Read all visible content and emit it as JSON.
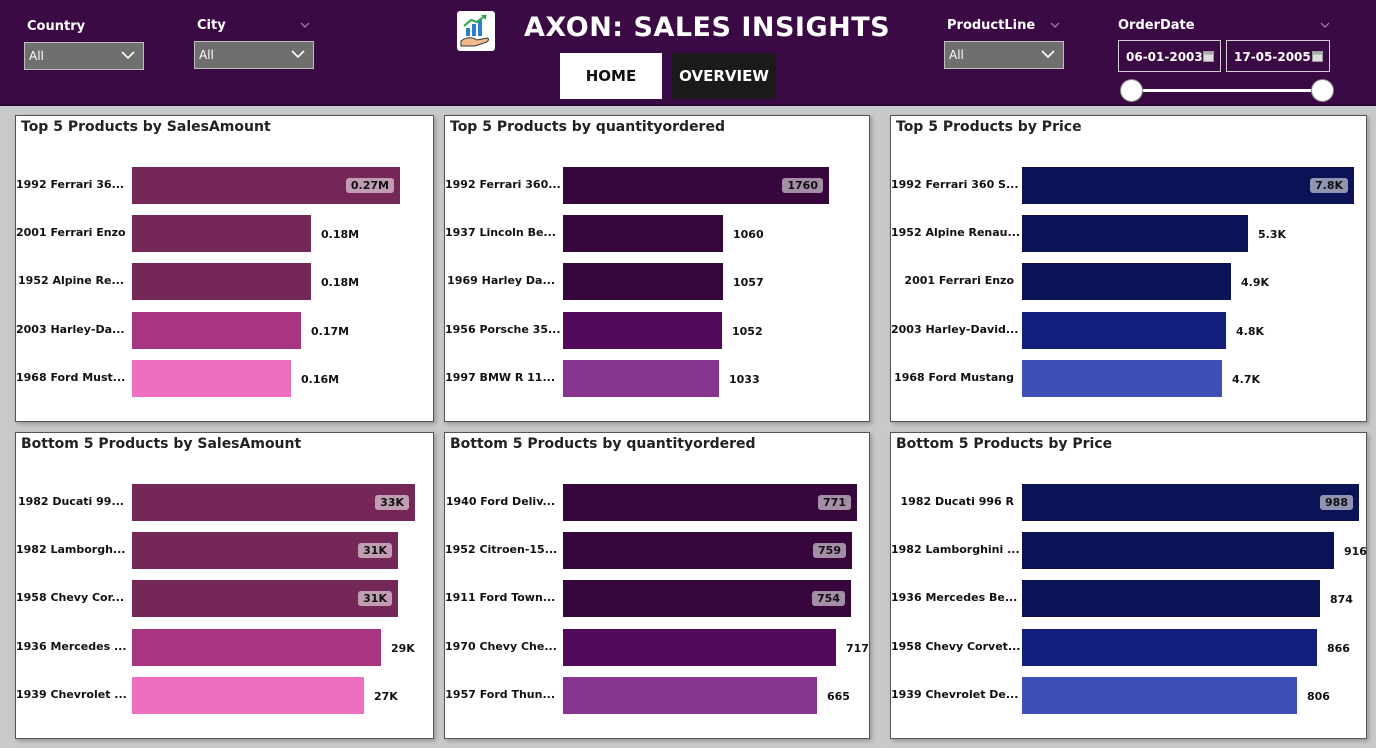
{
  "filters": {
    "country": {
      "label": "Country",
      "value": "All"
    },
    "city": {
      "label": "City",
      "value": "All"
    },
    "productline": {
      "label": "ProductLine",
      "value": "All"
    },
    "orderdate": {
      "label": "OrderDate",
      "start": "06-01-2003",
      "end": "17-05-2005"
    }
  },
  "app": {
    "title": "AXON: SALES INSIGHTS"
  },
  "nav": {
    "home": "HOME",
    "overview": "OVERVIEW"
  },
  "colors": {
    "header": "#3b0a44",
    "sales": [
      "#752757",
      "#752757",
      "#752757",
      "#a73582",
      "#ee6ec0"
    ],
    "quantity": [
      "#36063d",
      "#36063d",
      "#36063d",
      "#520a5a",
      "#86348e"
    ],
    "price": [
      "#0b1256",
      "#0b1256",
      "#0b1256",
      "#131f7e",
      "#404fb5"
    ]
  },
  "chart_data": [
    {
      "type": "bar",
      "title": "Top 5 Products by SalesAmount",
      "categories": [
        "1992 Ferrari 36...",
        "2001 Ferrari Enzo",
        "1952 Alpine Re...",
        "2003 Harley-Da...",
        "1968 Ford Must..."
      ],
      "values": [
        0.27,
        0.18,
        0.18,
        0.17,
        0.16
      ],
      "labels": [
        "0.27M",
        "0.18M",
        "0.18M",
        "0.17M",
        "0.16M"
      ],
      "max": 0.27
    },
    {
      "type": "bar",
      "title": "Top 5 Products by quantityordered",
      "categories": [
        "1992 Ferrari 360...",
        "1937 Lincoln Be...",
        "1969 Harley Da...",
        "1956 Porsche 35...",
        "1997 BMW R 11..."
      ],
      "values": [
        1760,
        1060,
        1057,
        1052,
        1033
      ],
      "labels": [
        "1760",
        "1060",
        "1057",
        "1052",
        "1033"
      ],
      "max": 1760
    },
    {
      "type": "bar",
      "title": "Top 5 Products by Price",
      "categories": [
        "1992 Ferrari 360 S...",
        "1952 Alpine Renau...",
        "2001 Ferrari Enzo",
        "2003 Harley-David...",
        "1968 Ford Mustang"
      ],
      "values": [
        7800,
        5300,
        4900,
        4800,
        4700
      ],
      "labels": [
        "7.8K",
        "5.3K",
        "4.9K",
        "4.8K",
        "4.7K"
      ],
      "max": 7800
    },
    {
      "type": "bar",
      "title": "Bottom 5 Products by SalesAmount",
      "categories": [
        "1982 Ducati 99...",
        "1982 Lamborgh...",
        "1958 Chevy Cor...",
        "1936 Mercedes ...",
        "1939 Chevrolet ..."
      ],
      "values": [
        33000,
        31000,
        31000,
        29000,
        27000
      ],
      "labels": [
        "33K",
        "31K",
        "31K",
        "29K",
        "27K"
      ],
      "max": 33000
    },
    {
      "type": "bar",
      "title": "Bottom 5 Products by quantityordered",
      "categories": [
        "1940 Ford Deliv...",
        "1952 Citroen-15...",
        "1911 Ford Town...",
        "1970 Chevy Che...",
        "1957 Ford Thun..."
      ],
      "values": [
        771,
        759,
        754,
        717,
        665
      ],
      "labels": [
        "771",
        "759",
        "754",
        "717",
        "665"
      ],
      "max": 771
    },
    {
      "type": "bar",
      "title": "Bottom 5 Products by Price",
      "categories": [
        "1982 Ducati 996 R",
        "1982 Lamborghini ...",
        "1936 Mercedes Be...",
        "1958 Chevy Corvet...",
        "1939 Chevrolet De..."
      ],
      "values": [
        988,
        916,
        874,
        866,
        806
      ],
      "labels": [
        "988",
        "916",
        "874",
        "866",
        "806"
      ],
      "max": 988
    }
  ]
}
